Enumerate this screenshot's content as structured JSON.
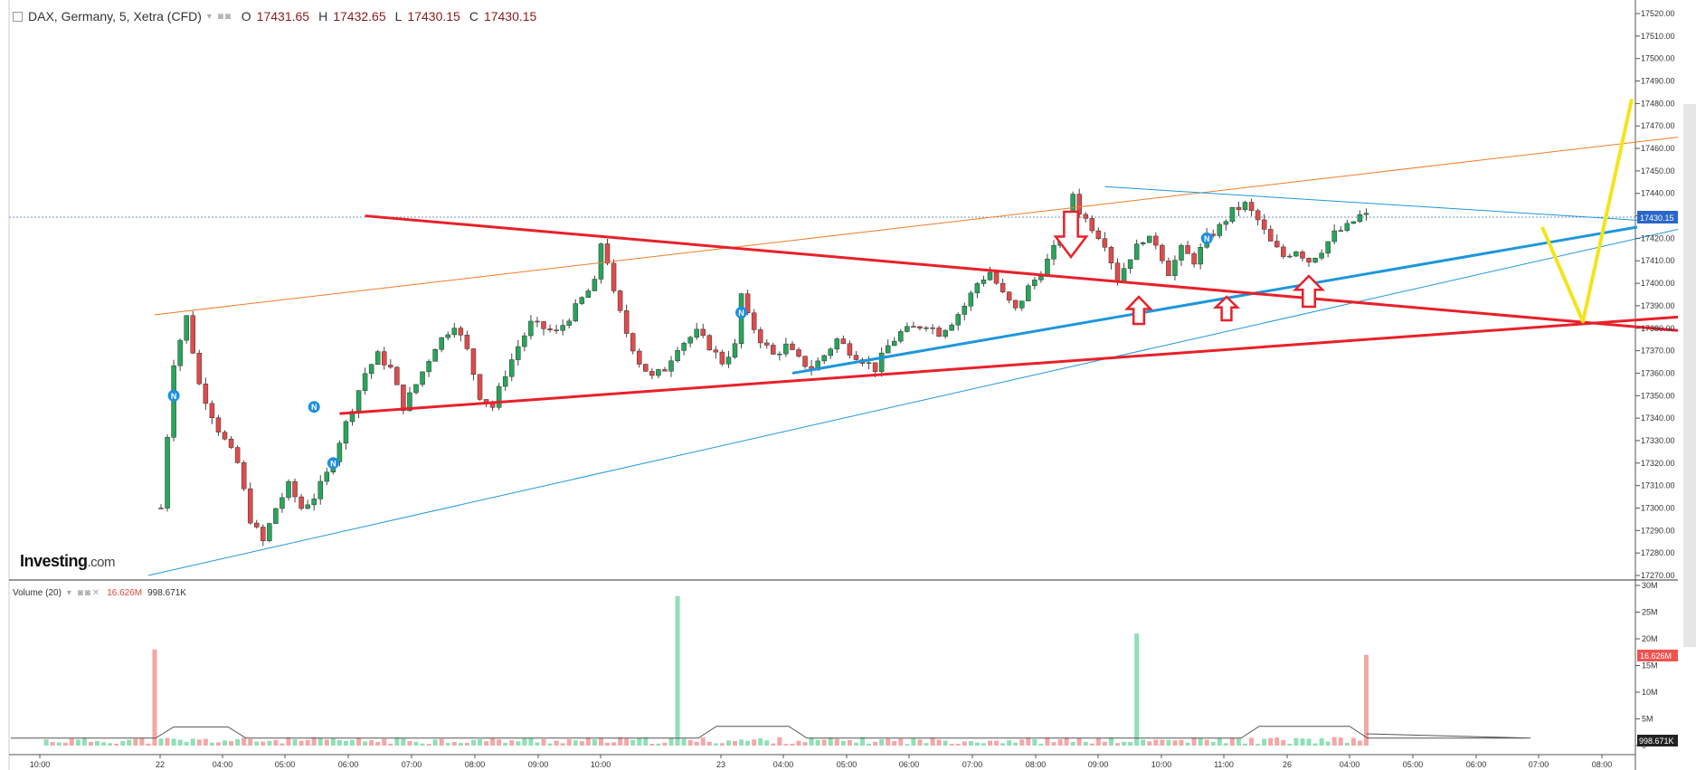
{
  "header": {
    "symbol": "DAX, Germany, 5, Xetra (CFD)",
    "o_label": "O",
    "o_value": "17431.65",
    "h_label": "H",
    "h_value": "17432.65",
    "l_label": "L",
    "l_value": "17430.15",
    "c_label": "C",
    "c_value": "17430.15"
  },
  "volume_header": {
    "label": "Volume (20)",
    "value_red": "16.626M",
    "value_black": "998.671K"
  },
  "logo": {
    "main": "Investing",
    "suffix": ".com"
  },
  "price_tag": "17430.15",
  "volume_tags": {
    "red": "16.626M",
    "black": "998.671K"
  },
  "colors": {
    "up": "#26a65b",
    "down": "#e04b4b",
    "trend_red": "#e8202a",
    "trend_blue": "#1e96dc",
    "channel_orange": "#f07d2a",
    "projection_yellow": "#f4e41a",
    "volume_up": "#8fe0b8",
    "volume_down": "#f4a7a7"
  },
  "icons": [
    "news-marker-icon",
    "down-arrow-icon",
    "up-arrow-icon"
  ],
  "chart_data": {
    "type": "candlestick",
    "title": "",
    "xlabel": "",
    "ylabel": "",
    "ylim": [
      17270,
      17525
    ],
    "y_ticks": [
      "17520.00",
      "17510.00",
      "17500.00",
      "17490.00",
      "17480.00",
      "17470.00",
      "17460.00",
      "17450.00",
      "17440.00",
      "17430.00",
      "17420.00",
      "17410.00",
      "17400.00",
      "17390.00",
      "17380.00",
      "17370.00",
      "17360.00",
      "17350.00",
      "17340.00",
      "17330.00",
      "17320.00",
      "17310.00",
      "17300.00",
      "17290.00",
      "17280.00",
      "17270.00"
    ],
    "x_ticks": [
      "10:00",
      "22",
      "04:00",
      "05:00",
      "06:00",
      "07:00",
      "08:00",
      "09:00",
      "10:00",
      "23",
      "04:00",
      "05:00",
      "06:00",
      "07:00",
      "08:00",
      "09:00",
      "10:00",
      "11:00",
      "26",
      "04:00",
      "05:00",
      "06:00",
      "07:00",
      "08:00"
    ],
    "volume_ticks": [
      "30M",
      "25M",
      "20M",
      "15M",
      "10M",
      "5M",
      "0"
    ],
    "price_path": [
      [
        0,
        17300
      ],
      [
        2,
        17365
      ],
      [
        4,
        17385
      ],
      [
        6,
        17355
      ],
      [
        9,
        17335
      ],
      [
        12,
        17320
      ],
      [
        14,
        17295
      ],
      [
        16,
        17285
      ],
      [
        18,
        17300
      ],
      [
        20,
        17310
      ],
      [
        22,
        17300
      ],
      [
        24,
        17305
      ],
      [
        26,
        17315
      ],
      [
        28,
        17330
      ],
      [
        30,
        17345
      ],
      [
        32,
        17360
      ],
      [
        34,
        17368
      ],
      [
        36,
        17362
      ],
      [
        38,
        17345
      ],
      [
        40,
        17355
      ],
      [
        43,
        17372
      ],
      [
        46,
        17382
      ],
      [
        48,
        17370
      ],
      [
        50,
        17350
      ],
      [
        52,
        17345
      ],
      [
        54,
        17360
      ],
      [
        56,
        17372
      ],
      [
        58,
        17382
      ],
      [
        60,
        17380
      ],
      [
        62,
        17378
      ],
      [
        64,
        17385
      ],
      [
        66,
        17393
      ],
      [
        68,
        17400
      ],
      [
        69,
        17418
      ],
      [
        70,
        17410
      ],
      [
        71,
        17395
      ],
      [
        73,
        17378
      ],
      [
        75,
        17365
      ],
      [
        77,
        17358
      ],
      [
        79,
        17362
      ],
      [
        81,
        17372
      ],
      [
        84,
        17378
      ],
      [
        86,
        17372
      ],
      [
        88,
        17365
      ],
      [
        90,
        17372
      ],
      [
        91,
        17395
      ],
      [
        92,
        17385
      ],
      [
        94,
        17375
      ],
      [
        96,
        17368
      ],
      [
        98,
        17372
      ],
      [
        100,
        17366
      ],
      [
        102,
        17362
      ],
      [
        104,
        17368
      ],
      [
        106,
        17375
      ],
      [
        108,
        17370
      ],
      [
        110,
        17366
      ],
      [
        112,
        17362
      ],
      [
        114,
        17372
      ],
      [
        116,
        17378
      ],
      [
        118,
        17380
      ],
      [
        120,
        17382
      ],
      [
        122,
        17378
      ],
      [
        124,
        17383
      ],
      [
        126,
        17390
      ],
      [
        128,
        17400
      ],
      [
        130,
        17405
      ],
      [
        132,
        17395
      ],
      [
        134,
        17388
      ],
      [
        136,
        17398
      ],
      [
        138,
        17405
      ],
      [
        140,
        17415
      ],
      [
        142,
        17428
      ],
      [
        143,
        17440
      ],
      [
        144,
        17432
      ],
      [
        146,
        17425
      ],
      [
        148,
        17418
      ],
      [
        150,
        17402
      ],
      [
        152,
        17412
      ],
      [
        154,
        17420
      ],
      [
        156,
        17418
      ],
      [
        158,
        17405
      ],
      [
        160,
        17415
      ],
      [
        162,
        17410
      ],
      [
        164,
        17420
      ],
      [
        166,
        17425
      ],
      [
        168,
        17432
      ],
      [
        170,
        17435
      ],
      [
        172,
        17428
      ],
      [
        174,
        17418
      ],
      [
        176,
        17412
      ],
      [
        178,
        17415
      ],
      [
        180,
        17410
      ],
      [
        182,
        17415
      ],
      [
        184,
        17422
      ],
      [
        186,
        17425
      ],
      [
        188,
        17430
      ],
      [
        189,
        17430
      ]
    ],
    "news_markers": [
      {
        "i": 2,
        "price": 17350
      },
      {
        "i": 24,
        "price": 17345
      },
      {
        "i": 27,
        "price": 17320
      },
      {
        "i": 91,
        "price": 17387
      },
      {
        "i": 164,
        "price": 17420
      }
    ],
    "volume_spikes": [
      {
        "i": -1,
        "value": 18,
        "dir": "down"
      },
      {
        "i": 81,
        "value": 28,
        "dir": "up"
      },
      {
        "i": 153,
        "value": 21,
        "dir": "up"
      },
      {
        "i": 189,
        "value": 17,
        "dir": "down"
      }
    ],
    "grid": false,
    "legend": "none"
  }
}
